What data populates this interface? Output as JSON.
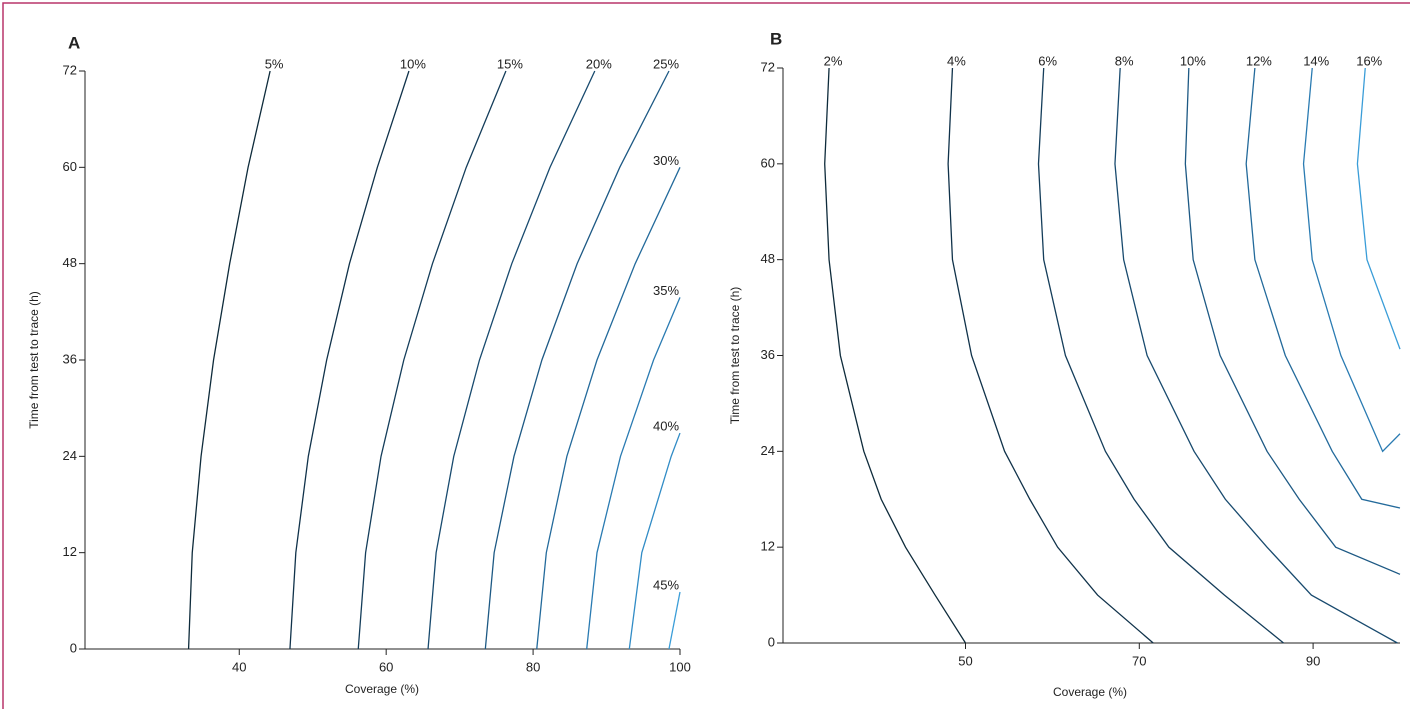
{
  "chart_data": [
    {
      "type": "line",
      "title": "A",
      "x_label": "Coverage (%)",
      "y_label": "Time from test to trace (h)",
      "xlim": [
        19,
        100
      ],
      "ylim": [
        0,
        72
      ],
      "xticks": [
        40,
        60,
        80,
        100
      ],
      "yticks": [
        0,
        12,
        24,
        36,
        48,
        60,
        72
      ],
      "series": [
        {
          "name": "5%",
          "color": "#0e2b3b",
          "x": [
            33.1,
            33.6,
            34.8,
            36.5,
            38.7,
            41.2,
            44.2
          ],
          "values": [
            0,
            12,
            24,
            36,
            48,
            60,
            72
          ]
        },
        {
          "name": "10%",
          "color": "#10324a",
          "x": [
            46.9,
            47.7,
            49.4,
            51.9,
            55.0,
            58.8,
            63.1
          ],
          "values": [
            0,
            12,
            24,
            36,
            48,
            60,
            72
          ]
        },
        {
          "name": "15%",
          "color": "#143d5a",
          "x": [
            56.2,
            57.2,
            59.3,
            62.4,
            66.3,
            70.9,
            76.3
          ],
          "values": [
            0,
            12,
            24,
            36,
            48,
            60,
            72
          ]
        },
        {
          "name": "20%",
          "color": "#184a6e",
          "x": [
            65.7,
            66.8,
            69.2,
            72.7,
            77.1,
            82.3,
            88.4
          ],
          "values": [
            0,
            12,
            24,
            36,
            48,
            60,
            72
          ]
        },
        {
          "name": "25%",
          "color": "#1d5984",
          "x": [
            73.5,
            74.7,
            77.4,
            81.2,
            86.0,
            91.8,
            98.5
          ],
          "values": [
            0,
            12,
            24,
            36,
            48,
            60,
            72
          ]
        },
        {
          "name": "30%",
          "color": "#236a9b",
          "x": [
            80.5,
            81.8,
            84.6,
            88.7,
            93.9,
            100
          ],
          "values": [
            0,
            12,
            24,
            36,
            48,
            60
          ]
        },
        {
          "name": "35%",
          "color": "#2a7bb2",
          "x": [
            87.3,
            88.7,
            91.9,
            96.4,
            100
          ],
          "values": [
            0,
            12,
            24,
            36,
            43.8
          ]
        },
        {
          "name": "40%",
          "color": "#318cc6",
          "x": [
            93.1,
            94.8,
            98.8,
            100
          ],
          "values": [
            0,
            12,
            24,
            26.9
          ]
        },
        {
          "name": "45%",
          "color": "#3a9dd8",
          "x": [
            98.5,
            100
          ],
          "values": [
            0,
            7.1
          ]
        }
      ]
    },
    {
      "type": "line",
      "title": "B",
      "x_label": "Coverage (%)",
      "y_label": "Time from test to trace (h)",
      "xlim": [
        29,
        100
      ],
      "ylim": [
        0,
        72
      ],
      "xticks": [
        50,
        70,
        90
      ],
      "yticks": [
        0,
        12,
        24,
        36,
        48,
        60,
        72
      ],
      "series": [
        {
          "name": "2%",
          "color": "#0e2b3b",
          "x": [
            50,
            46.5,
            43.1,
            40.3,
            38.3,
            35.6,
            34.3,
            33.8,
            34.3
          ],
          "values": [
            0,
            6,
            12,
            18,
            24,
            36,
            48,
            60,
            72
          ]
        },
        {
          "name": "4%",
          "color": "#10324a",
          "x": [
            71.6,
            65.2,
            60.6,
            57.4,
            54.5,
            50.7,
            48.5,
            48.0,
            48.5
          ],
          "values": [
            0,
            6,
            12,
            18,
            24,
            36,
            48,
            60,
            72
          ]
        },
        {
          "name": "6%",
          "color": "#143d5a",
          "x": [
            86.6,
            79.8,
            73.4,
            69.4,
            66.1,
            61.5,
            59.0,
            58.4,
            59.0
          ],
          "values": [
            0,
            6,
            12,
            18,
            24,
            36,
            48,
            60,
            72
          ]
        },
        {
          "name": "8%",
          "color": "#184a6e",
          "x": [
            99.7,
            89.8,
            84.7,
            79.9,
            76.3,
            70.9,
            68.2,
            67.2,
            67.8
          ],
          "values": [
            0,
            6,
            12,
            18,
            24,
            36,
            48,
            60,
            72
          ]
        },
        {
          "name": "10%",
          "color": "#1d5984",
          "x": [
            100,
            92.6,
            88.4,
            84.7,
            79.3,
            76.2,
            75.3,
            75.7
          ],
          "values": [
            8.6,
            12,
            18,
            24,
            36,
            48,
            60,
            72
          ]
        },
        {
          "name": "12%",
          "color": "#236a9b",
          "x": [
            100,
            95.6,
            92.2,
            86.8,
            83.3,
            82.3,
            83.3
          ],
          "values": [
            16.9,
            18,
            24,
            36,
            48,
            60,
            72
          ]
        },
        {
          "name": "14%",
          "color": "#2a7bb2",
          "x": [
            100,
            98.0,
            93.2,
            89.9,
            88.9,
            89.9
          ],
          "values": [
            26.2,
            24,
            36,
            48,
            60,
            72
          ]
        },
        {
          "name": "16%",
          "color": "#3a9dd8",
          "x": [
            100,
            96.2,
            95.1,
            96.0
          ],
          "values": [
            36.8,
            48,
            60,
            72
          ]
        }
      ]
    }
  ]
}
